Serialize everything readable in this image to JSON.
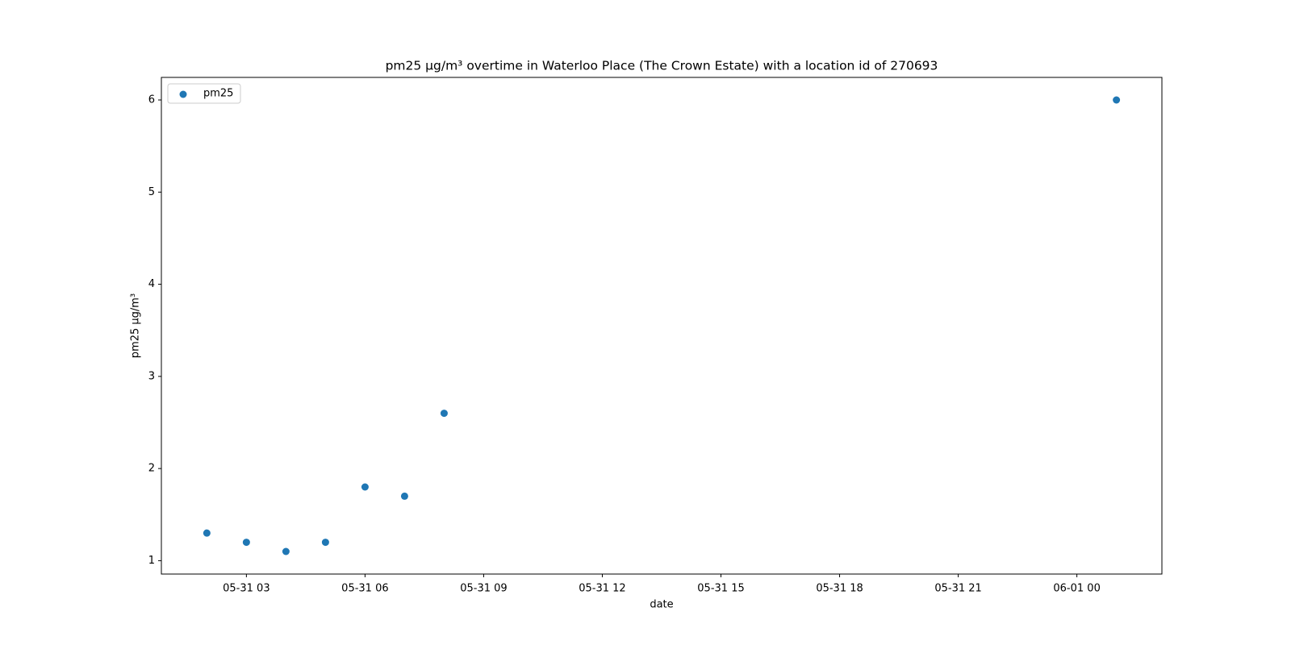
{
  "chart_data": {
    "type": "scatter",
    "title": "pm25 µg/m³ overtime in Waterloo Place (The Crown Estate) with a location id of 270693",
    "x_label": "date",
    "y_label": "pm25 µg/m³",
    "x": [
      "05-31 02",
      "05-31 03",
      "05-31 04",
      "05-31 05",
      "05-31 06",
      "05-31 07",
      "05-31 08",
      "06-01 01"
    ],
    "series": [
      {
        "name": "pm25",
        "color": "#1f77b4",
        "values": [
          1.3,
          1.2,
          1.1,
          1.2,
          1.8,
          1.7,
          2.6,
          6.0
        ]
      }
    ],
    "xlim": [
      "05-31 00:51",
      "06-01 02:09"
    ],
    "xticks": [
      "05-31 03",
      "05-31 06",
      "05-31 09",
      "05-31 12",
      "05-31 15",
      "05-31 18",
      "05-31 21",
      "06-01 00"
    ],
    "ylim": [
      0.855,
      6.245
    ],
    "yticks": [
      1,
      2,
      3,
      4,
      5,
      6
    ],
    "grid": false,
    "legend": "upper left"
  }
}
